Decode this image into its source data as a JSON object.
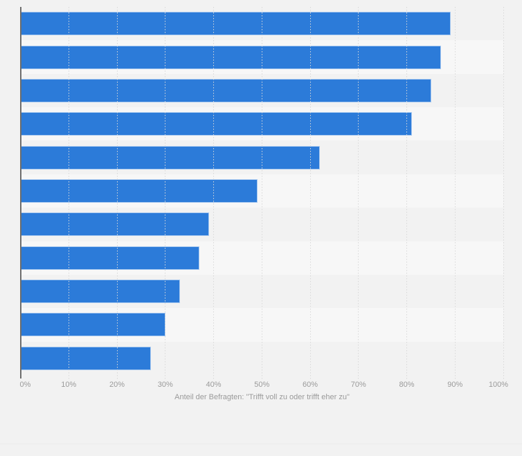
{
  "chart_data": {
    "type": "bar",
    "orientation": "horizontal",
    "title": "",
    "values": [
      89,
      87,
      85,
      81,
      62,
      49,
      39,
      37,
      33,
      30,
      27
    ],
    "value_unit": "%",
    "categories_visible": false,
    "xlabel": "Anteil der Befragten: \"Trifft voll zu oder trifft eher zu\"",
    "xlim": [
      0,
      100
    ],
    "x_tick_values": [
      0,
      10,
      20,
      30,
      40,
      50,
      60,
      70,
      80,
      90,
      100
    ],
    "x_tick_labels": [
      "0%",
      "10%",
      "20%",
      "30%",
      "40%",
      "50%",
      "60%",
      "70%",
      "80%",
      "90%",
      "100%"
    ],
    "grid": "vertical dotted gridlines at 10% steps",
    "legend": "none",
    "row_bands": "alternating, even rows lighter"
  },
  "style": {
    "page_bg": "#f2f2f2",
    "band_alt_bg": "#f7f7f7",
    "bar_color": "#2c7bd9",
    "bar_border_color": "rgba(255,255,255,0.6)",
    "axis_line_color": "#6d6d6d",
    "gridline_color": "#d8d8d8",
    "tick_text_color": "#9a9a9a",
    "axis_title_color": "#9a9a9a"
  }
}
